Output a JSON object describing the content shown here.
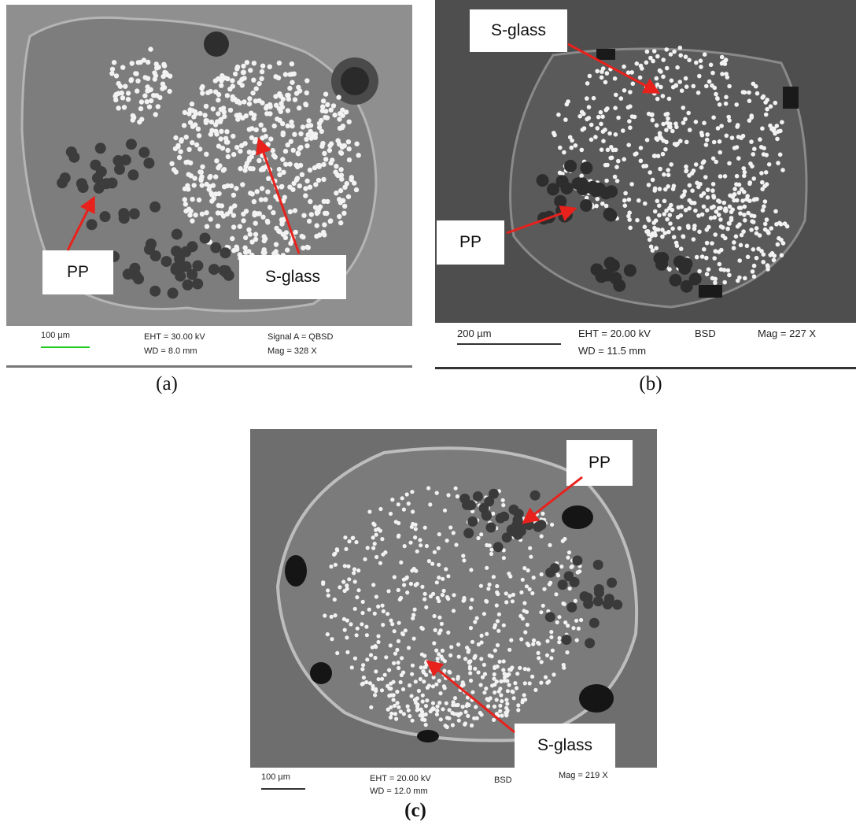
{
  "figure": {
    "panels": [
      {
        "id": "a",
        "caption": "(a)",
        "scale_bar": "100 µm",
        "scale_bar_color": "#22cc22",
        "eht": "EHT = 30.00 kV",
        "wd": "WD = 8.0 mm",
        "signal": "Signal A = QBSD",
        "mag": "Mag =    328 X",
        "labels": [
          "PP",
          "S-glass"
        ]
      },
      {
        "id": "b",
        "caption": "(b)",
        "scale_bar": "200 µm",
        "scale_bar_color": "#333333",
        "eht": "EHT = 20.00 kV",
        "wd": "WD = 11.5 mm",
        "detector": "BSD",
        "mag": "Mag =     227 X",
        "labels": [
          "S-glass",
          "PP"
        ]
      },
      {
        "id": "c",
        "caption": "(c)",
        "scale_bar": "100 µm",
        "scale_bar_color": "#333333",
        "eht": "EHT = 20.00 kV",
        "wd": "WD = 12.0 mm",
        "detector": "BSD",
        "mag": "Mag =    219 X",
        "labels": [
          "PP",
          "S-glass"
        ]
      }
    ],
    "colors": {
      "arrow": "#e8211c",
      "matrix_a": "#8f8f8f",
      "matrix_b": "#4e4e4e",
      "matrix_c": "#6e6e6e",
      "glass_fiber": "#f2f2f2",
      "pp_fiber": "#3c3c3c"
    }
  }
}
